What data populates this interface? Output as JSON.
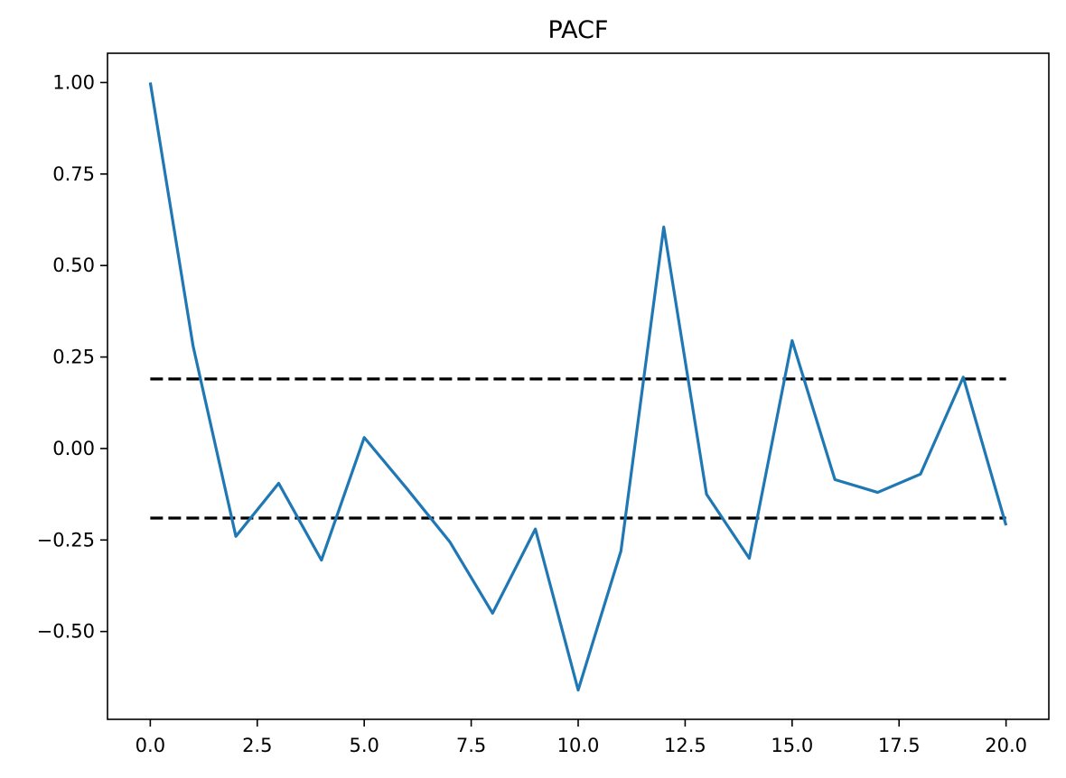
{
  "chart_data": {
    "type": "line",
    "title": "PACF",
    "xlabel": "",
    "ylabel": "",
    "xlim": [
      -1.0,
      21.0
    ],
    "ylim": [
      -0.74,
      1.08
    ],
    "x_ticks": [
      0.0,
      2.5,
      5.0,
      7.5,
      10.0,
      12.5,
      15.0,
      17.5,
      20.0
    ],
    "x_tick_labels": [
      "0.0",
      "2.5",
      "5.0",
      "7.5",
      "10.0",
      "12.5",
      "15.0",
      "17.5",
      "20.0"
    ],
    "y_ticks": [
      1.0,
      0.75,
      0.5,
      0.25,
      0.0,
      -0.25,
      -0.5
    ],
    "y_tick_labels": [
      "1.00",
      "0.75",
      "0.50",
      "0.25",
      "0.00",
      "−0.25",
      "−0.50"
    ],
    "grid": false,
    "series": [
      {
        "x": [
          0,
          1,
          2,
          3,
          4,
          5,
          6,
          7,
          8,
          9,
          10,
          11,
          12,
          13,
          14,
          15,
          16,
          17,
          18,
          19,
          20
        ],
        "values": [
          1.0,
          0.28,
          -0.24,
          -0.095,
          -0.305,
          0.03,
          -0.11,
          -0.255,
          -0.45,
          -0.22,
          -0.66,
          -0.28,
          0.605,
          -0.125,
          -0.3,
          0.295,
          -0.085,
          -0.12,
          -0.07,
          0.195,
          -0.21
        ],
        "color": "#1f77b4"
      }
    ],
    "reference_lines": [
      {
        "y": 0.19,
        "x_range": [
          0,
          20
        ],
        "style": "dashed",
        "color": "#000000"
      },
      {
        "y": -0.19,
        "x_range": [
          0,
          20
        ],
        "style": "dashed",
        "color": "#000000"
      }
    ]
  }
}
